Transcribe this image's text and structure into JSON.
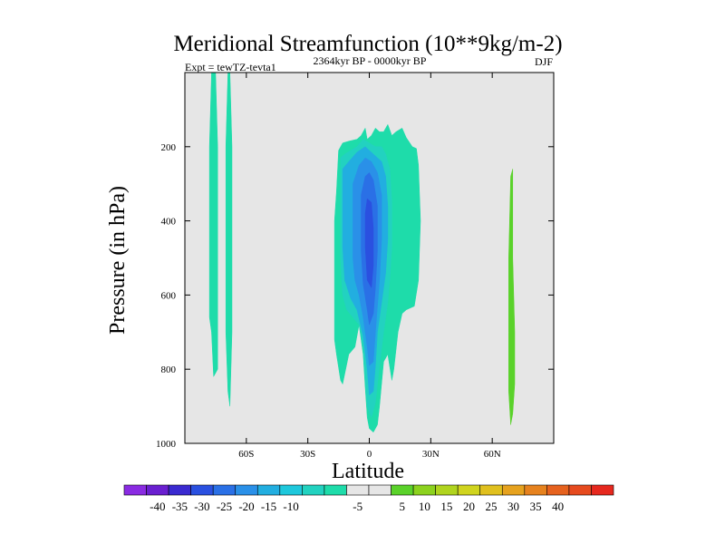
{
  "chart_data": {
    "type": "heatmap",
    "title": "Meridional Streamfunction (10**9kg/m-2)",
    "left_label": "Expt = tewTZ-tevta1",
    "center_label": "2364kyr BP - 0000kyr BP",
    "right_label": "DJF",
    "xlabel": "Latitude",
    "ylabel": "Pressure (in hPa)",
    "xlim": [
      -90,
      90
    ],
    "ylim": [
      1000,
      0
    ],
    "x_ticks": [
      {
        "value": -60,
        "label": "60S"
      },
      {
        "value": -30,
        "label": "30S"
      },
      {
        "value": 0,
        "label": "0"
      },
      {
        "value": 30,
        "label": "30N"
      },
      {
        "value": 60,
        "label": "60N"
      }
    ],
    "y_ticks": [
      {
        "value": 200,
        "label": "200"
      },
      {
        "value": 400,
        "label": "400"
      },
      {
        "value": 600,
        "label": "600"
      },
      {
        "value": 800,
        "label": "800"
      },
      {
        "value": 1000,
        "label": "1000"
      }
    ],
    "background_color": "#e6e6e6",
    "colorbar": {
      "colors": [
        "#8a2be2",
        "#6a1fd0",
        "#3a2ad0",
        "#2a50e0",
        "#2a70e6",
        "#2a90e8",
        "#22aee0",
        "#1ec8dc",
        "#22d2c0",
        "#1edcaa",
        "#e6e6e6",
        "#e6e6e6",
        "#5ad22a",
        "#8cd21e",
        "#b0d41e",
        "#d0d41e",
        "#e0c01e",
        "#e6a21e",
        "#e6821e",
        "#e6621e",
        "#e64a1e",
        "#e6281e"
      ],
      "labels": [
        "-40",
        "-35",
        "-30",
        "-25",
        "-20",
        "-15",
        "-10",
        "-5",
        "5",
        "10",
        "15",
        "20",
        "25",
        "30",
        "35",
        "40"
      ]
    },
    "regions": [
      {
        "level": -10,
        "color": "#1edcaa",
        "points": [
          [
            -77,
            0
          ],
          [
            -75,
            0
          ],
          [
            -74,
            200
          ],
          [
            -74,
            800
          ],
          [
            -76,
            820
          ],
          [
            -77,
            700
          ],
          [
            -78,
            660
          ],
          [
            -78,
            200
          ]
        ]
      },
      {
        "level": -10,
        "color": "#1edcaa",
        "points": [
          [
            -69,
            0
          ],
          [
            -68,
            0
          ],
          [
            -67,
            200
          ],
          [
            -67,
            700
          ],
          [
            -68,
            900
          ],
          [
            -69,
            860
          ],
          [
            -70,
            700
          ],
          [
            -70,
            200
          ]
        ]
      },
      {
        "level": -10,
        "color": "#1edcaa",
        "points": [
          [
            -16,
            320
          ],
          [
            -15,
            210
          ],
          [
            -13,
            190
          ],
          [
            -10,
            185
          ],
          [
            -6,
            180
          ],
          [
            -4,
            170
          ],
          [
            -2,
            150
          ],
          [
            -1,
            180
          ],
          [
            1,
            170
          ],
          [
            3,
            150
          ],
          [
            5,
            160
          ],
          [
            7,
            160
          ],
          [
            9,
            140
          ],
          [
            11,
            170
          ],
          [
            13,
            160
          ],
          [
            16,
            150
          ],
          [
            18,
            175
          ],
          [
            21,
            200
          ],
          [
            23,
            205
          ],
          [
            24,
            250
          ],
          [
            25,
            400
          ],
          [
            24,
            560
          ],
          [
            22,
            630
          ],
          [
            18,
            640
          ],
          [
            16,
            650
          ],
          [
            14,
            700
          ],
          [
            12,
            800
          ],
          [
            11,
            830
          ],
          [
            9,
            760
          ],
          [
            7,
            780
          ],
          [
            5,
            900
          ],
          [
            4,
            950
          ],
          [
            2,
            970
          ],
          [
            0,
            960
          ],
          [
            -1,
            930
          ],
          [
            -2,
            850
          ],
          [
            -3,
            760
          ],
          [
            -5,
            680
          ],
          [
            -7,
            740
          ],
          [
            -10,
            760
          ],
          [
            -13,
            840
          ],
          [
            -14,
            830
          ],
          [
            -16,
            760
          ],
          [
            -17,
            720
          ],
          [
            -17,
            400
          ]
        ]
      },
      {
        "level": -15,
        "color": "#22d2c0",
        "points": [
          [
            -14,
            230
          ],
          [
            -12,
            220
          ],
          [
            -9,
            210
          ],
          [
            -6,
            200
          ],
          [
            -3,
            180
          ],
          [
            0,
            190
          ],
          [
            3,
            200
          ],
          [
            6,
            200
          ],
          [
            8,
            220
          ],
          [
            10,
            260
          ],
          [
            11,
            350
          ],
          [
            11,
            470
          ],
          [
            10,
            560
          ],
          [
            9,
            620
          ],
          [
            7,
            700
          ],
          [
            5,
            790
          ],
          [
            3,
            890
          ],
          [
            1,
            930
          ],
          [
            -1,
            900
          ],
          [
            -2,
            820
          ],
          [
            -3,
            740
          ],
          [
            -5,
            680
          ],
          [
            -8,
            660
          ],
          [
            -11,
            640
          ],
          [
            -13,
            600
          ],
          [
            -14,
            500
          ],
          [
            -14,
            350
          ]
        ]
      },
      {
        "level": -20,
        "color": "#22aee0",
        "points": [
          [
            -13,
            260
          ],
          [
            -10,
            240
          ],
          [
            -6,
            215
          ],
          [
            -2,
            200
          ],
          [
            2,
            220
          ],
          [
            6,
            240
          ],
          [
            8,
            280
          ],
          [
            9,
            360
          ],
          [
            9,
            450
          ],
          [
            8,
            540
          ],
          [
            6,
            620
          ],
          [
            4,
            700
          ],
          [
            3,
            790
          ],
          [
            2,
            860
          ],
          [
            0,
            870
          ],
          [
            -1,
            800
          ],
          [
            -3,
            710
          ],
          [
            -6,
            640
          ],
          [
            -9,
            610
          ],
          [
            -12,
            560
          ],
          [
            -13,
            470
          ],
          [
            -13,
            350
          ]
        ]
      },
      {
        "level": -25,
        "color": "#2a90e8",
        "points": [
          [
            -8,
            300
          ],
          [
            -5,
            250
          ],
          [
            -2,
            230
          ],
          [
            1,
            240
          ],
          [
            4,
            270
          ],
          [
            6,
            330
          ],
          [
            6,
            450
          ],
          [
            5,
            560
          ],
          [
            4,
            630
          ],
          [
            3,
            700
          ],
          [
            2,
            780
          ],
          [
            0,
            790
          ],
          [
            -1,
            740
          ],
          [
            -3,
            660
          ],
          [
            -5,
            600
          ],
          [
            -7,
            560
          ],
          [
            -8,
            500
          ],
          [
            -8,
            400
          ]
        ]
      },
      {
        "level": -30,
        "color": "#2a70e6",
        "points": [
          [
            -4,
            330
          ],
          [
            -2,
            280
          ],
          [
            0,
            270
          ],
          [
            2,
            290
          ],
          [
            4,
            360
          ],
          [
            4,
            480
          ],
          [
            3,
            580
          ],
          [
            2,
            650
          ],
          [
            0,
            680
          ],
          [
            -1,
            640
          ],
          [
            -3,
            570
          ],
          [
            -4,
            480
          ],
          [
            -4,
            400
          ]
        ]
      },
      {
        "level": -35,
        "color": "#2a50e0",
        "points": [
          [
            -2,
            380
          ],
          [
            -1,
            340
          ],
          [
            1,
            350
          ],
          [
            2,
            420
          ],
          [
            2,
            520
          ],
          [
            1,
            580
          ],
          [
            -1,
            560
          ],
          [
            -2,
            470
          ]
        ]
      },
      {
        "level": 5,
        "color": "#5ad22a",
        "points": [
          [
            69,
            280
          ],
          [
            70,
            260
          ],
          [
            70,
            500
          ],
          [
            71,
            700
          ],
          [
            71,
            840
          ],
          [
            70,
            920
          ],
          [
            69,
            950
          ],
          [
            68,
            860
          ],
          [
            68,
            700
          ],
          [
            68,
            500
          ]
        ]
      }
    ]
  }
}
